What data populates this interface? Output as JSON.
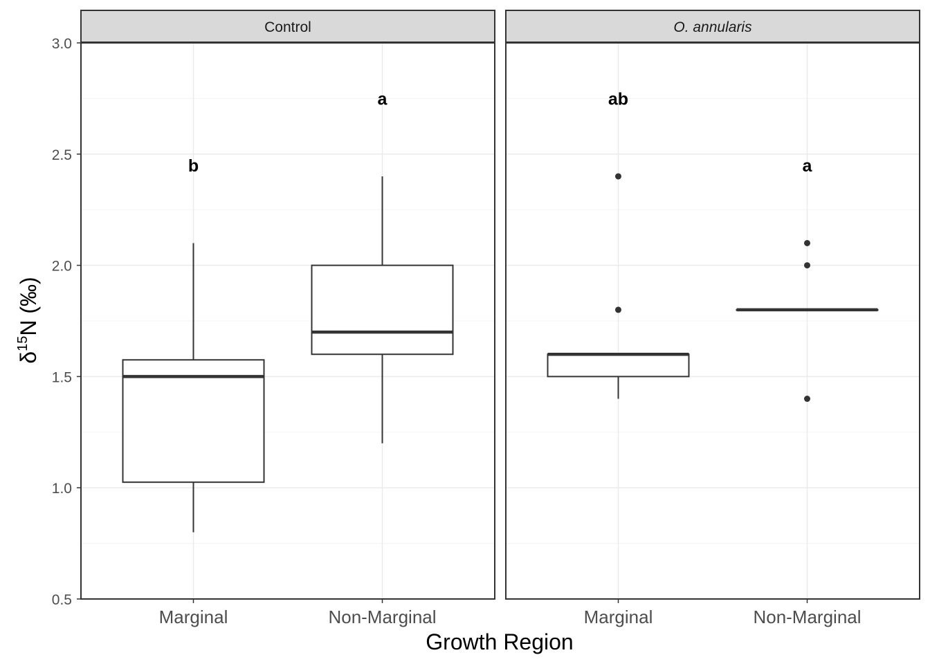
{
  "chart_data": {
    "type": "box",
    "xlabel": "Growth Region",
    "ylabel": {
      "delta": "δ",
      "superscript": "15",
      "rest": "N (‰)"
    },
    "ylim": [
      0.5,
      3.0
    ],
    "yticks": [
      0.5,
      1.0,
      1.5,
      2.0,
      2.5,
      3.0
    ],
    "ytick_labels": [
      "0.5",
      "1.0",
      "1.5",
      "2.0",
      "2.5",
      "3.0"
    ],
    "categories": [
      "Marginal",
      "Non-Marginal"
    ],
    "grid": true,
    "panels": [
      {
        "title": "Control",
        "title_italic": false,
        "boxes": [
          {
            "category": "Marginal",
            "whisker_low": 0.8,
            "q1": 1.025,
            "median": 1.5,
            "q3": 1.575,
            "whisker_high": 2.1,
            "outliers": [],
            "letter": "b",
            "letter_y": 2.45
          },
          {
            "category": "Non-Marginal",
            "whisker_low": 1.2,
            "q1": 1.6,
            "median": 1.7,
            "q3": 2.0,
            "whisker_high": 2.4,
            "outliers": [],
            "letter": "a",
            "letter_y": 2.75
          }
        ]
      },
      {
        "title": "O. annularis",
        "title_italic": true,
        "boxes": [
          {
            "category": "Marginal",
            "whisker_low": 1.4,
            "q1": 1.5,
            "median": 1.6,
            "q3": 1.6,
            "whisker_high": 1.6,
            "outliers": [
              1.8,
              2.4
            ],
            "letter": "ab",
            "letter_y": 2.75
          },
          {
            "category": "Non-Marginal",
            "whisker_low": 1.8,
            "q1": 1.8,
            "median": 1.8,
            "q3": 1.8,
            "whisker_high": 1.8,
            "outliers": [
              1.4,
              2.0,
              2.1
            ],
            "letter": "a",
            "letter_y": 2.45
          }
        ]
      }
    ]
  },
  "colors": {
    "background": "#ffffff",
    "strip_fill": "#d9d9d9",
    "panel_border": "#333333",
    "grid_major": "#ebebeb",
    "grid_minor": "#f5f5f5",
    "box_line": "#333333",
    "tick_text": "#4d4d4d",
    "title_text": "#000000"
  }
}
